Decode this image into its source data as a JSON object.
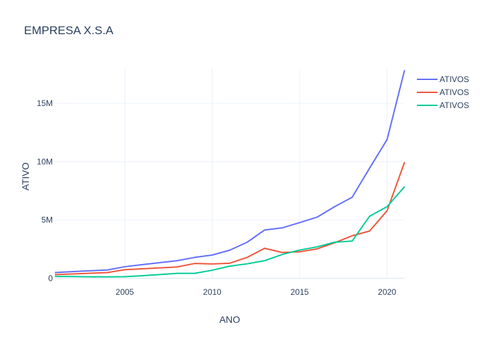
{
  "chart_data": {
    "type": "line",
    "title": "EMPRESA X.S.A",
    "xlabel": "ANO",
    "ylabel": "ATIVO",
    "xlim": [
      2001,
      2021
    ],
    "ylim": [
      0,
      18000000
    ],
    "x_ticks": [
      2005,
      2010,
      2015,
      2020
    ],
    "y_ticks": [
      {
        "value": 0,
        "label": "0"
      },
      {
        "value": 5000000,
        "label": "5M"
      },
      {
        "value": 10000000,
        "label": "10M"
      },
      {
        "value": 15000000,
        "label": "15M"
      }
    ],
    "grid": true,
    "legend_position": "top-right",
    "x": [
      2001,
      2002,
      2003,
      2004,
      2005,
      2006,
      2007,
      2008,
      2009,
      2010,
      2011,
      2012,
      2013,
      2014,
      2015,
      2016,
      2017,
      2018,
      2019,
      2020,
      2021
    ],
    "series": [
      {
        "name": "ATIVOS",
        "color": "#636efa",
        "values": [
          500000,
          580000,
          650000,
          720000,
          1000000,
          1180000,
          1350000,
          1520000,
          1800000,
          2000000,
          2420000,
          3100000,
          4150000,
          4330000,
          4780000,
          5250000,
          6150000,
          6950000,
          9450000,
          11900000,
          17850000
        ]
      },
      {
        "name": "ATIVOS",
        "color": "#ef553b",
        "values": [
          320000,
          380000,
          440000,
          500000,
          750000,
          820000,
          900000,
          980000,
          1280000,
          1240000,
          1300000,
          1800000,
          2580000,
          2220000,
          2280000,
          2530000,
          3050000,
          3650000,
          4060000,
          5800000,
          9960000
        ]
      },
      {
        "name": "ATIVOS",
        "color": "#00cc96",
        "values": [
          170000,
          160000,
          140000,
          130000,
          150000,
          230000,
          330000,
          430000,
          430000,
          700000,
          1050000,
          1250000,
          1520000,
          2050000,
          2430000,
          2700000,
          3100000,
          3200000,
          5330000,
          6150000,
          7860000
        ]
      }
    ]
  }
}
